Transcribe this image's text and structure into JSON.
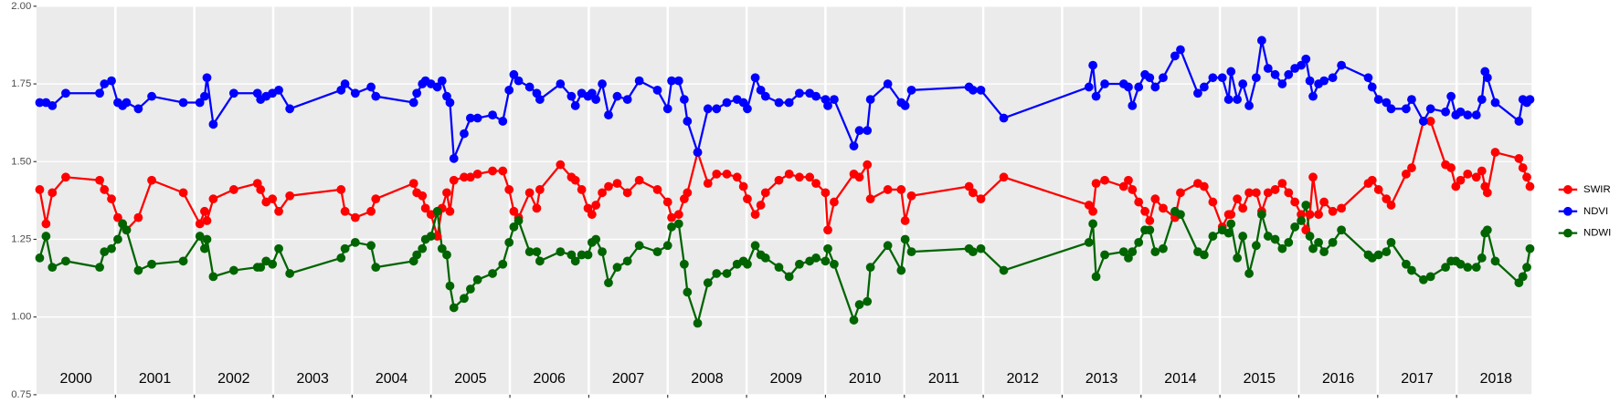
{
  "chart_data": {
    "type": "line",
    "x": [
      2000.04,
      2000.12,
      2000.2,
      2000.37,
      2000.8,
      2000.86,
      2000.95,
      2001.03,
      2001.09,
      2001.14,
      2001.29,
      2001.46,
      2001.86,
      2002.07,
      2002.13,
      2002.16,
      2002.24,
      2002.5,
      2002.8,
      2002.84,
      2002.91,
      2002.99,
      2003.07,
      2003.21,
      2003.86,
      2003.91,
      2004.04,
      2004.24,
      2004.3,
      2004.78,
      2004.82,
      2004.89,
      2004.93,
      2005.0,
      2005.08,
      2005.14,
      2005.2,
      2005.24,
      2005.29,
      2005.42,
      2005.5,
      2005.59,
      2005.78,
      2005.91,
      2005.99,
      2006.05,
      2006.11,
      2006.25,
      2006.34,
      2006.38,
      2006.64,
      2006.78,
      2006.83,
      2006.91,
      2006.99,
      2007.04,
      2007.09,
      2007.17,
      2007.25,
      2007.36,
      2007.49,
      2007.64,
      2007.87,
      2008.0,
      2008.05,
      2008.14,
      2008.21,
      2008.25,
      2008.38,
      2008.51,
      2008.62,
      2008.75,
      2008.88,
      2008.96,
      2009.01,
      2009.11,
      2009.18,
      2009.24,
      2009.41,
      2009.54,
      2009.67,
      2009.8,
      2009.88,
      2010.0,
      2010.03,
      2010.11,
      2010.36,
      2010.43,
      2010.53,
      2010.57,
      2010.79,
      2010.96,
      2011.01,
      2011.09,
      2011.82,
      2011.87,
      2011.97,
      2012.26,
      2013.34,
      2013.39,
      2013.43,
      2013.54,
      2013.78,
      2013.84,
      2013.89,
      2013.97,
      2014.05,
      2014.11,
      2014.18,
      2014.28,
      2014.43,
      2014.5,
      2014.72,
      2014.8,
      2014.91,
      2015.03,
      2015.11,
      2015.14,
      2015.22,
      2015.29,
      2015.37,
      2015.46,
      2015.53,
      2015.61,
      2015.7,
      2015.79,
      2015.87,
      2015.95,
      2016.03,
      2016.09,
      2016.14,
      2016.18,
      2016.25,
      2016.32,
      2016.43,
      2016.54,
      2016.88,
      2016.93,
      2017.01,
      2017.11,
      2017.17,
      2017.36,
      2017.43,
      2017.58,
      2017.67,
      2017.86,
      2017.93,
      2017.99,
      2018.05,
      2018.14,
      2018.25,
      2018.32,
      2018.36,
      2018.39,
      2018.49,
      2018.79,
      2018.84,
      2018.89,
      2018.93
    ],
    "series": [
      {
        "name": "SWIR",
        "color": "#ff0000",
        "values": [
          1.41,
          1.3,
          1.4,
          1.45,
          1.44,
          1.41,
          1.38,
          1.32,
          1.3,
          1.28,
          1.32,
          1.44,
          1.4,
          1.3,
          1.34,
          1.31,
          1.38,
          1.41,
          1.43,
          1.41,
          1.37,
          1.38,
          1.34,
          1.39,
          1.41,
          1.34,
          1.32,
          1.34,
          1.38,
          1.43,
          1.4,
          1.39,
          1.35,
          1.33,
          1.26,
          1.35,
          1.4,
          1.34,
          1.44,
          1.45,
          1.45,
          1.46,
          1.47,
          1.47,
          1.41,
          1.34,
          1.32,
          1.4,
          1.35,
          1.41,
          1.49,
          1.45,
          1.44,
          1.41,
          1.35,
          1.33,
          1.36,
          1.4,
          1.42,
          1.43,
          1.4,
          1.44,
          1.41,
          1.37,
          1.32,
          1.33,
          1.38,
          1.4,
          1.53,
          1.43,
          1.46,
          1.46,
          1.45,
          1.42,
          1.38,
          1.33,
          1.36,
          1.4,
          1.44,
          1.46,
          1.45,
          1.45,
          1.43,
          1.4,
          1.28,
          1.37,
          1.46,
          1.45,
          1.49,
          1.38,
          1.41,
          1.41,
          1.31,
          1.39,
          1.42,
          1.4,
          1.38,
          1.45,
          1.36,
          1.34,
          1.43,
          1.44,
          1.42,
          1.44,
          1.41,
          1.37,
          1.34,
          1.31,
          1.38,
          1.35,
          1.32,
          1.4,
          1.43,
          1.42,
          1.37,
          1.29,
          1.33,
          1.33,
          1.38,
          1.35,
          1.4,
          1.4,
          1.34,
          1.4,
          1.41,
          1.43,
          1.4,
          1.37,
          1.33,
          1.28,
          1.33,
          1.45,
          1.33,
          1.37,
          1.34,
          1.35,
          1.43,
          1.44,
          1.41,
          1.38,
          1.36,
          1.46,
          1.48,
          1.63,
          1.63,
          1.49,
          1.48,
          1.42,
          1.44,
          1.46,
          1.45,
          1.47,
          1.42,
          1.4,
          1.53,
          1.51,
          1.48,
          1.45,
          1.42
        ]
      },
      {
        "name": "NDVI",
        "color": "#0000ff",
        "values": [
          1.69,
          1.69,
          1.68,
          1.72,
          1.72,
          1.75,
          1.76,
          1.69,
          1.68,
          1.69,
          1.67,
          1.71,
          1.69,
          1.69,
          1.71,
          1.77,
          1.62,
          1.72,
          1.72,
          1.7,
          1.71,
          1.72,
          1.73,
          1.67,
          1.73,
          1.75,
          1.72,
          1.74,
          1.71,
          1.69,
          1.72,
          1.75,
          1.76,
          1.75,
          1.74,
          1.76,
          1.71,
          1.69,
          1.51,
          1.59,
          1.64,
          1.64,
          1.65,
          1.63,
          1.73,
          1.78,
          1.76,
          1.74,
          1.72,
          1.7,
          1.75,
          1.71,
          1.68,
          1.72,
          1.71,
          1.72,
          1.7,
          1.75,
          1.65,
          1.71,
          1.7,
          1.76,
          1.73,
          1.67,
          1.76,
          1.76,
          1.7,
          1.63,
          1.53,
          1.67,
          1.67,
          1.69,
          1.7,
          1.69,
          1.67,
          1.77,
          1.73,
          1.71,
          1.69,
          1.69,
          1.72,
          1.72,
          1.71,
          1.7,
          1.68,
          1.7,
          1.55,
          1.6,
          1.6,
          1.7,
          1.75,
          1.69,
          1.68,
          1.73,
          1.74,
          1.73,
          1.73,
          1.64,
          1.74,
          1.81,
          1.71,
          1.75,
          1.75,
          1.74,
          1.68,
          1.74,
          1.78,
          1.77,
          1.74,
          1.77,
          1.84,
          1.86,
          1.72,
          1.74,
          1.77,
          1.77,
          1.7,
          1.79,
          1.7,
          1.75,
          1.68,
          1.77,
          1.89,
          1.8,
          1.78,
          1.75,
          1.78,
          1.8,
          1.81,
          1.83,
          1.76,
          1.71,
          1.75,
          1.76,
          1.77,
          1.81,
          1.77,
          1.74,
          1.7,
          1.69,
          1.67,
          1.67,
          1.7,
          1.63,
          1.67,
          1.66,
          1.71,
          1.65,
          1.66,
          1.65,
          1.65,
          1.7,
          1.79,
          1.77,
          1.69,
          1.63,
          1.7,
          1.69,
          1.7
        ]
      },
      {
        "name": "NDWI",
        "color": "#006400",
        "values": [
          1.19,
          1.26,
          1.16,
          1.18,
          1.16,
          1.21,
          1.22,
          1.25,
          1.3,
          1.28,
          1.15,
          1.17,
          1.18,
          1.26,
          1.22,
          1.25,
          1.13,
          1.15,
          1.16,
          1.16,
          1.18,
          1.17,
          1.22,
          1.14,
          1.19,
          1.22,
          1.24,
          1.23,
          1.16,
          1.18,
          1.2,
          1.22,
          1.25,
          1.26,
          1.34,
          1.22,
          1.2,
          1.1,
          1.03,
          1.06,
          1.09,
          1.12,
          1.14,
          1.17,
          1.24,
          1.29,
          1.31,
          1.21,
          1.21,
          1.18,
          1.21,
          1.2,
          1.18,
          1.2,
          1.2,
          1.24,
          1.25,
          1.21,
          1.11,
          1.16,
          1.18,
          1.23,
          1.21,
          1.23,
          1.29,
          1.3,
          1.17,
          1.08,
          0.98,
          1.11,
          1.14,
          1.14,
          1.17,
          1.18,
          1.17,
          1.23,
          1.2,
          1.19,
          1.16,
          1.13,
          1.17,
          1.18,
          1.19,
          1.18,
          1.22,
          1.17,
          0.99,
          1.04,
          1.05,
          1.16,
          1.23,
          1.15,
          1.25,
          1.21,
          1.22,
          1.21,
          1.22,
          1.15,
          1.24,
          1.3,
          1.13,
          1.2,
          1.21,
          1.19,
          1.21,
          1.24,
          1.28,
          1.28,
          1.21,
          1.22,
          1.34,
          1.33,
          1.21,
          1.2,
          1.26,
          1.28,
          1.27,
          1.3,
          1.19,
          1.26,
          1.14,
          1.23,
          1.33,
          1.26,
          1.25,
          1.22,
          1.24,
          1.29,
          1.31,
          1.36,
          1.26,
          1.22,
          1.24,
          1.21,
          1.24,
          1.28,
          1.2,
          1.19,
          1.2,
          1.21,
          1.24,
          1.17,
          1.15,
          1.12,
          1.13,
          1.16,
          1.18,
          1.18,
          1.17,
          1.16,
          1.16,
          1.19,
          1.27,
          1.28,
          1.18,
          1.11,
          1.13,
          1.16,
          1.22
        ]
      }
    ],
    "xlim": [
      2000,
      2018.95
    ],
    "xgrid": [
      2001,
      2002,
      2003,
      2004,
      2005,
      2006,
      2007,
      2008,
      2009,
      2010,
      2011,
      2012,
      2013,
      2014,
      2015,
      2016,
      2017,
      2018
    ],
    "xticks": [
      {
        "value": 2000.5,
        "label": "2000"
      },
      {
        "value": 2001.5,
        "label": "2001"
      },
      {
        "value": 2002.5,
        "label": "2002"
      },
      {
        "value": 2003.5,
        "label": "2003"
      },
      {
        "value": 2004.5,
        "label": "2004"
      },
      {
        "value": 2005.5,
        "label": "2005"
      },
      {
        "value": 2006.5,
        "label": "2006"
      },
      {
        "value": 2007.5,
        "label": "2007"
      },
      {
        "value": 2008.5,
        "label": "2008"
      },
      {
        "value": 2009.5,
        "label": "2009"
      },
      {
        "value": 2010.5,
        "label": "2010"
      },
      {
        "value": 2011.5,
        "label": "2011"
      },
      {
        "value": 2012.5,
        "label": "2012"
      },
      {
        "value": 2013.5,
        "label": "2013"
      },
      {
        "value": 2014.5,
        "label": "2014"
      },
      {
        "value": 2015.5,
        "label": "2015"
      },
      {
        "value": 2016.5,
        "label": "2016"
      },
      {
        "value": 2017.5,
        "label": "2017"
      },
      {
        "value": 2018.5,
        "label": "2018"
      }
    ],
    "ylim": [
      0.75,
      2.0
    ],
    "yticks": [
      0.75,
      {
        "value": 1.0,
        "label": "1.00"
      },
      {
        "value": 1.25,
        "label": "1.25"
      },
      {
        "value": 1.5,
        "label": "1.50"
      },
      {
        "value": 1.75,
        "label": "1.75"
      },
      {
        "value": 2.0,
        "label": "2.00"
      }
    ],
    "grid": true,
    "legend": "right"
  }
}
